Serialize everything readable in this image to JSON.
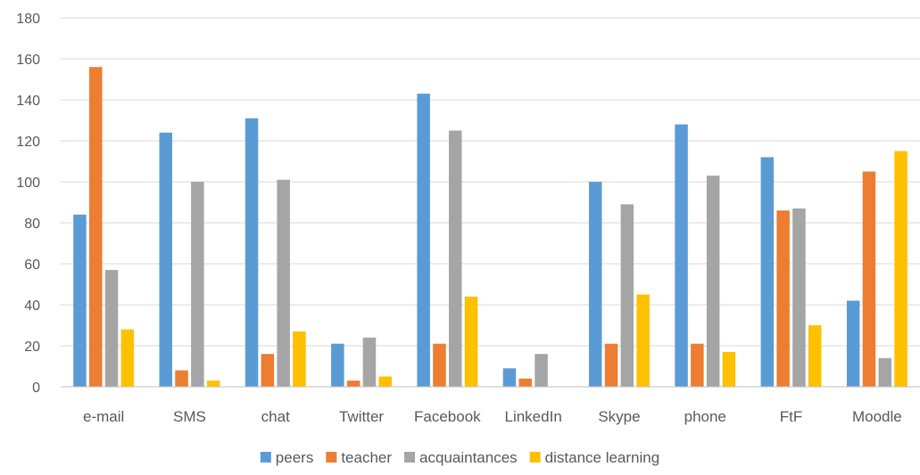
{
  "chart_data": {
    "type": "bar",
    "title": "",
    "xlabel": "",
    "ylabel": "",
    "ylim": [
      0,
      180
    ],
    "yticks": [
      0,
      20,
      40,
      60,
      80,
      100,
      120,
      140,
      160,
      180
    ],
    "grid": true,
    "legend_position": "bottom",
    "categories": [
      "e-mail",
      "SMS",
      "chat",
      "Twitter",
      "Facebook",
      "LinkedIn",
      "Skype",
      "phone",
      "FtF",
      "Moodle"
    ],
    "series": [
      {
        "name": "peers",
        "color": "#5b9bd5",
        "values": [
          84,
          124,
          131,
          21,
          143,
          9,
          100,
          128,
          112,
          42
        ]
      },
      {
        "name": "teacher",
        "color": "#ed7d31",
        "values": [
          156,
          8,
          16,
          3,
          21,
          4,
          21,
          21,
          86,
          105
        ]
      },
      {
        "name": "acquaintances",
        "color": "#a5a5a5",
        "values": [
          57,
          100,
          101,
          24,
          125,
          16,
          89,
          103,
          87,
          14
        ]
      },
      {
        "name": "distance learning",
        "color": "#ffc000",
        "values": [
          28,
          3,
          27,
          5,
          44,
          0,
          45,
          17,
          30,
          115
        ]
      }
    ]
  }
}
